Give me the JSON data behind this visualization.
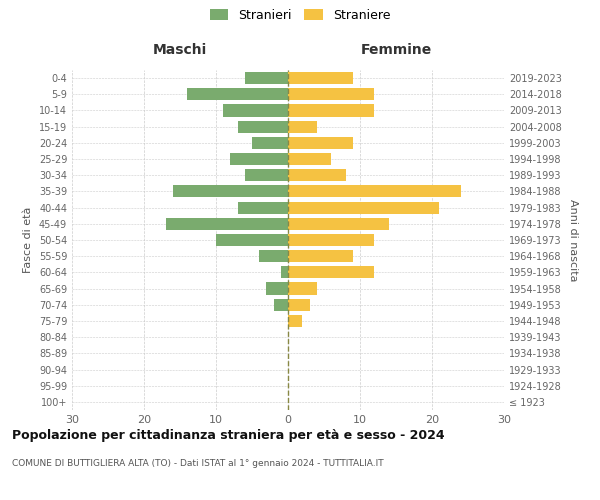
{
  "age_groups": [
    "100+",
    "95-99",
    "90-94",
    "85-89",
    "80-84",
    "75-79",
    "70-74",
    "65-69",
    "60-64",
    "55-59",
    "50-54",
    "45-49",
    "40-44",
    "35-39",
    "30-34",
    "25-29",
    "20-24",
    "15-19",
    "10-14",
    "5-9",
    "0-4"
  ],
  "birth_years": [
    "≤ 1923",
    "1924-1928",
    "1929-1933",
    "1934-1938",
    "1939-1943",
    "1944-1948",
    "1949-1953",
    "1954-1958",
    "1959-1963",
    "1964-1968",
    "1969-1973",
    "1974-1978",
    "1979-1983",
    "1984-1988",
    "1989-1993",
    "1994-1998",
    "1999-2003",
    "2004-2008",
    "2009-2013",
    "2014-2018",
    "2019-2023"
  ],
  "maschi": [
    0,
    0,
    0,
    0,
    0,
    0,
    2,
    3,
    1,
    4,
    10,
    17,
    7,
    16,
    6,
    8,
    5,
    7,
    9,
    14,
    6
  ],
  "femmine": [
    0,
    0,
    0,
    0,
    0,
    2,
    3,
    4,
    12,
    9,
    12,
    14,
    21,
    24,
    8,
    6,
    9,
    4,
    12,
    12,
    9
  ],
  "color_maschi": "#7aab6e",
  "color_femmine": "#f5c242",
  "title_main": "Popolazione per cittadinanza straniera per età e sesso - 2024",
  "title_sub": "COMUNE DI BUTTIGLIERA ALTA (TO) - Dati ISTAT al 1° gennaio 2024 - TUTTITALIA.IT",
  "xlabel_left": "Maschi",
  "xlabel_right": "Femmine",
  "ylabel_left": "Fasce di età",
  "ylabel_right": "Anni di nascita",
  "legend_maschi": "Stranieri",
  "legend_femmine": "Straniere",
  "xlim": 30,
  "background_color": "#ffffff",
  "grid_color": "#cccccc"
}
